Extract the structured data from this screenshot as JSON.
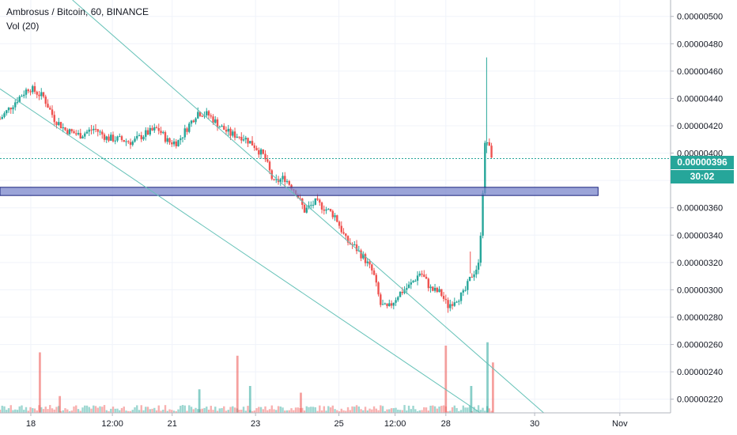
{
  "legend": {
    "title": "Ambrosus / Bitcoin, 60, BINANCE",
    "volume_label": "Vol (20)"
  },
  "price_tag": {
    "last": "0.00000396",
    "countdown": "30:02",
    "color": "#26a69a"
  },
  "colors": {
    "up": "#26a69a",
    "down": "#ef5350",
    "trend": "#66c2b8",
    "zone_fill": "#7986cb",
    "zone_border": "#1a237e"
  },
  "chart_data": {
    "type": "candlestick",
    "title": "Ambrosus / Bitcoin, 60, BINANCE",
    "y_ticks": [
      "0.00000500",
      "0.00000480",
      "0.00000460",
      "0.00000440",
      "0.00000420",
      "0.00000400",
      "0.00000380",
      "0.00000360",
      "0.00000340",
      "0.00000320",
      "0.00000300",
      "0.00000280",
      "0.00000260",
      "0.00000240",
      "0.00000220"
    ],
    "y_tick_values": [
      500,
      480,
      460,
      440,
      420,
      400,
      380,
      360,
      340,
      320,
      300,
      280,
      260,
      240,
      220
    ],
    "x_ticks": [
      "18",
      "12:00",
      "21",
      "23",
      "25",
      "12:00",
      "28",
      "30",
      "Nov"
    ],
    "x_tick_pos": [
      0.7,
      5.2,
      8.5,
      13.1,
      17.7,
      20.8,
      23.6,
      28.5,
      33.2
    ],
    "x_range": [
      -1,
      36
    ],
    "y_range": [
      210,
      512
    ],
    "last_price": 396,
    "support_zone": {
      "low": 369,
      "high": 375,
      "x_start": -1,
      "x_end": 32
    },
    "trend_lines": [
      {
        "from": [
          3.0,
          512
        ],
        "to": [
          29.0,
          210
        ]
      },
      {
        "from": [
          -1,
          447
        ],
        "to": [
          25.5,
          210
        ]
      }
    ],
    "price_path": [
      [
        -1,
        425
      ],
      [
        0,
        440
      ],
      [
        0.6,
        448
      ],
      [
        1.4,
        441
      ],
      [
        2.0,
        425
      ],
      [
        2.6,
        417
      ],
      [
        3.4,
        413
      ],
      [
        4.2,
        418
      ],
      [
        4.9,
        411
      ],
      [
        5.6,
        410
      ],
      [
        6.3,
        408
      ],
      [
        7.0,
        414
      ],
      [
        7.7,
        418
      ],
      [
        8.3,
        408
      ],
      [
        8.8,
        408
      ],
      [
        9.3,
        418
      ],
      [
        9.9,
        430
      ],
      [
        10.5,
        428
      ],
      [
        11.1,
        420
      ],
      [
        11.7,
        414
      ],
      [
        12.4,
        412
      ],
      [
        13.0,
        406
      ],
      [
        13.6,
        397
      ],
      [
        14.1,
        378
      ],
      [
        14.7,
        382
      ],
      [
        15.3,
        372
      ],
      [
        15.8,
        358
      ],
      [
        16.4,
        364
      ],
      [
        16.9,
        360
      ],
      [
        17.5,
        354
      ],
      [
        18.1,
        336
      ],
      [
        18.6,
        331
      ],
      [
        19.1,
        323
      ],
      [
        19.6,
        312
      ],
      [
        20.0,
        289
      ],
      [
        20.4,
        286
      ],
      [
        21.0,
        297
      ],
      [
        21.6,
        303
      ],
      [
        22.2,
        313
      ],
      [
        22.8,
        300
      ],
      [
        23.3,
        298
      ],
      [
        23.7,
        288
      ],
      [
        24.1,
        293
      ],
      [
        24.6,
        297
      ],
      [
        25.0,
        310
      ],
      [
        25.4,
        318
      ],
      [
        25.6,
        358
      ],
      [
        25.7,
        395
      ],
      [
        25.8,
        412
      ],
      [
        26.0,
        403
      ],
      [
        26.2,
        396
      ]
    ],
    "volume_spikes": [
      {
        "x": 1.2,
        "v": 0.9,
        "c": "down"
      },
      {
        "x": 2.3,
        "v": 0.25,
        "c": "down"
      },
      {
        "x": 10.0,
        "v": 0.35,
        "c": "up"
      },
      {
        "x": 12.1,
        "v": 0.85,
        "c": "down"
      },
      {
        "x": 12.8,
        "v": 0.4,
        "c": "up"
      },
      {
        "x": 15.6,
        "v": 0.3,
        "c": "down"
      },
      {
        "x": 23.6,
        "v": 1.0,
        "c": "down"
      },
      {
        "x": 25.0,
        "v": 0.4,
        "c": "up"
      },
      {
        "x": 25.9,
        "v": 1.05,
        "c": "up"
      },
      {
        "x": 26.2,
        "v": 0.75,
        "c": "down"
      }
    ]
  }
}
